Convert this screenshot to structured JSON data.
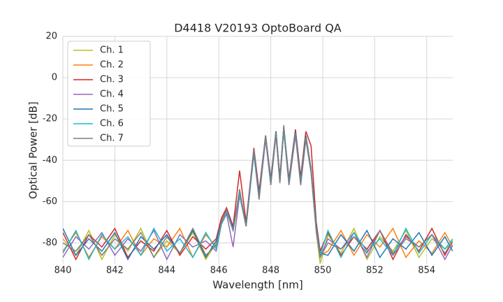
{
  "chart_data": {
    "type": "line",
    "title": "D4418 V20193 OptoBoard QA",
    "x_label": "Wavelength [nm]",
    "y_label": "Optical Power [dB]",
    "x": [
      840,
      840.5,
      841,
      841.5,
      842,
      842.5,
      843,
      843.5,
      844,
      844.5,
      845,
      845.5,
      845.9,
      846.1,
      846.3,
      846.55,
      846.8,
      847.05,
      847.35,
      847.55,
      847.8,
      848.0,
      848.2,
      848.35,
      848.5,
      848.7,
      848.95,
      849.15,
      849.35,
      849.55,
      849.75,
      849.9,
      850.2,
      850.7,
      851.2,
      851.7,
      852.2,
      852.7,
      853.2,
      853.7,
      854.2,
      854.7,
      855
    ],
    "series": [
      {
        "name": "Ch. 1",
        "color": "#bcbd22",
        "values": [
          -78,
          -86,
          -74,
          -88,
          -76,
          -84,
          -73,
          -87,
          -79,
          -85,
          -75,
          -88,
          -80,
          -70,
          -65,
          -74,
          -57,
          -72,
          -36,
          -58,
          -29,
          -51,
          -27,
          -50,
          -25,
          -51,
          -27,
          -51,
          -29,
          -45,
          -75,
          -90,
          -76,
          -85,
          -73,
          -88,
          -77,
          -84,
          -74,
          -87,
          -78,
          -83,
          -80
        ]
      },
      {
        "name": "Ch. 2",
        "color": "#ff7f0e",
        "values": [
          -84,
          -75,
          -87,
          -77,
          -83,
          -74,
          -86,
          -78,
          -82,
          -73,
          -87,
          -76,
          -82,
          -69,
          -64,
          -73,
          -55,
          -71,
          -35,
          -57,
          -28,
          -50,
          -26,
          -49,
          -24,
          -50,
          -26,
          -50,
          -28,
          -44,
          -73,
          -86,
          -84,
          -74,
          -86,
          -76,
          -82,
          -73,
          -87,
          -79,
          -85,
          -75,
          -82
        ]
      },
      {
        "name": "Ch. 3",
        "color": "#d62728",
        "values": [
          -75,
          -88,
          -76,
          -82,
          -73,
          -87,
          -79,
          -84,
          -74,
          -86,
          -77,
          -83,
          -78,
          -68,
          -63,
          -72,
          -45,
          -70,
          -34,
          -55,
          -28,
          -49,
          -26,
          -48,
          -24,
          -49,
          -25,
          -48,
          -26,
          -33,
          -70,
          -84,
          -75,
          -86,
          -77,
          -83,
          -74,
          -88,
          -76,
          -84,
          -73,
          -86,
          -79
        ]
      },
      {
        "name": "Ch. 4",
        "color": "#9467bd",
        "values": [
          -87,
          -77,
          -83,
          -75,
          -86,
          -78,
          -84,
          -74,
          -88,
          -76,
          -82,
          -79,
          -84,
          -71,
          -66,
          -82,
          -57,
          -72,
          -37,
          -59,
          -30,
          -52,
          -28,
          -51,
          -26,
          -52,
          -28,
          -52,
          -30,
          -46,
          -74,
          -87,
          -78,
          -83,
          -75,
          -87,
          -74,
          -85,
          -77,
          -82,
          -76,
          -88,
          -81
        ]
      },
      {
        "name": "Ch. 5",
        "color": "#1f77b4",
        "values": [
          -73,
          -86,
          -78,
          -84,
          -75,
          -88,
          -77,
          -83,
          -76,
          -85,
          -74,
          -87,
          -79,
          -70,
          -64,
          -73,
          -55,
          -71,
          -35,
          -57,
          -28,
          -50,
          -26,
          -49,
          -24,
          -50,
          -26,
          -50,
          -28,
          -44,
          -72,
          -85,
          -86,
          -76,
          -84,
          -74,
          -87,
          -78,
          -83,
          -75,
          -86,
          -77,
          -84
        ]
      },
      {
        "name": "Ch. 6",
        "color": "#17becf",
        "values": [
          -85,
          -74,
          -88,
          -76,
          -83,
          -77,
          -86,
          -73,
          -84,
          -78,
          -87,
          -75,
          -83,
          -71,
          -65,
          -74,
          -56,
          -72,
          -37,
          -58,
          -29,
          -51,
          -27,
          -50,
          -26,
          -51,
          -27,
          -51,
          -29,
          -45,
          -73,
          -86,
          -74,
          -87,
          -75,
          -84,
          -78,
          -86,
          -73,
          -85,
          -76,
          -83,
          -78
        ]
      },
      {
        "name": "Ch. 7",
        "color": "#7f7f7f",
        "values": [
          -80,
          -84,
          -76,
          -86,
          -78,
          -83,
          -75,
          -87,
          -77,
          -85,
          -73,
          -86,
          -81,
          -70,
          -64,
          -74,
          -54,
          -72,
          -35,
          -59,
          -28,
          -52,
          -27,
          -51,
          -23,
          -52,
          -27,
          -52,
          -29,
          -46,
          -74,
          -87,
          -80,
          -83,
          -77,
          -85,
          -74,
          -86,
          -78,
          -82,
          -76,
          -85,
          -79
        ]
      }
    ],
    "xlim": [
      840,
      855
    ],
    "xticks": [
      840,
      842,
      844,
      846,
      848,
      850,
      852,
      854
    ],
    "ylim": [
      -90,
      20
    ],
    "yticks": [
      -80,
      -60,
      -40,
      -20,
      0,
      20
    ],
    "grid": true,
    "legend": "upper left"
  }
}
